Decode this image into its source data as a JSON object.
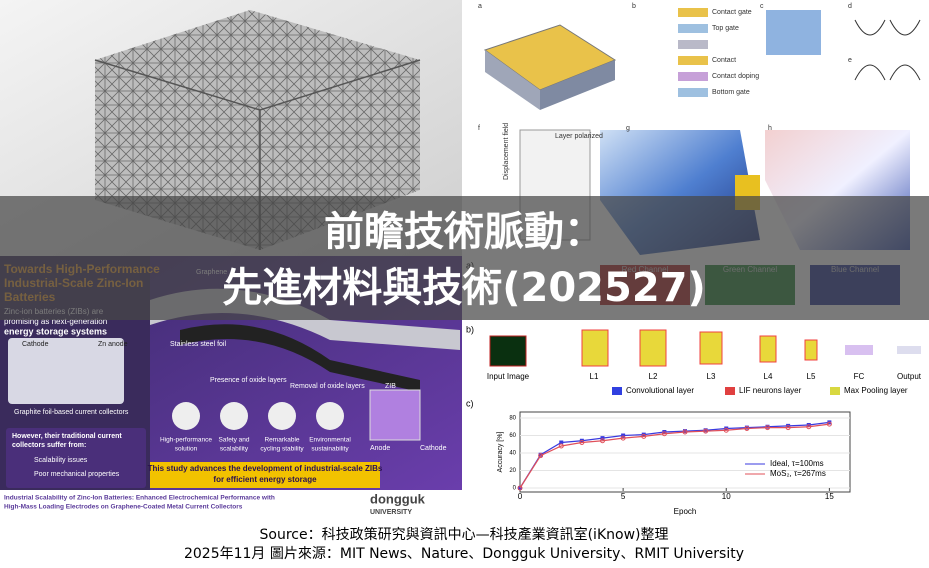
{
  "title": [
    "前瞻技術脈動：",
    "先進材料與技術(202527)"
  ],
  "source": [
    "Source：科技政策研究與資訊中心—科技產業資訊室(iKnow)整理",
    "2025年11月  圖片來源：MIT News、Nature、Dongguk University、RMIT University"
  ],
  "top_right": {
    "labels": [
      "a",
      "b",
      "c",
      "d",
      "e",
      "f",
      "g",
      "h",
      "Contact gate",
      "Top gate",
      "Contact",
      "Contact doping",
      "Bottom gate",
      "Layer polarized",
      "Displacement field"
    ]
  },
  "bottom_left": {
    "heading": [
      "Towards High-Performance",
      "Industrial-Scale Zinc-Ion",
      "Batteries"
    ],
    "intro": [
      "Zinc-ion batteries (ZIBs) are",
      "promising as next-generation",
      "energy storage systems"
    ],
    "labels": [
      "Cathode",
      "Zn anode",
      "Graphite foil-based current collectors",
      "Graphene",
      "Stainless steel foil",
      "Presence of oxide layers",
      "Removal of oxide layers",
      "ZIB",
      "Anode",
      "Cathode"
    ],
    "problem": [
      "However, their traditional current",
      "collectors suffer from:"
    ],
    "issues": [
      "Scalability issues",
      "Poor mechanical properties"
    ],
    "benefits": [
      [
        "High-performance",
        "solution"
      ],
      [
        "Safety and",
        "scalability"
      ],
      [
        "Remarkable",
        "cycling stability"
      ],
      [
        "Environmental",
        "sustainability"
      ]
    ],
    "conclusion": [
      "This study advances the development of industrial-scale ZIBs",
      "for efficient energy storage"
    ],
    "footer": [
      "Industrial Scalability of Zinc-Ion Batteries: Enhanced Electrochemical Performance with",
      "High-Mass Loading Electrodes on Graphene-Coated Metal Current Collectors"
    ],
    "logo": [
      "dongguk",
      "UNIVERSITY"
    ]
  },
  "bottom_right": {
    "panels": [
      "a)",
      "b)",
      "c)"
    ],
    "channels": [
      "Red Channel",
      "Green Channel",
      "Blue Channel"
    ],
    "layers": [
      "Input Image",
      "L1",
      "L2",
      "L3",
      "L4",
      "L5",
      "FC",
      "Output"
    ],
    "legend": [
      "Convolutional layer",
      "LIF neurons layer",
      "Max Pooling layer"
    ]
  },
  "chart_data": {
    "type": "line",
    "x_label": "Epoch",
    "y_label": "Accuracy [%]",
    "x": [
      0,
      1,
      2,
      3,
      4,
      5,
      6,
      7,
      8,
      9,
      10,
      11,
      12,
      13,
      14,
      15
    ],
    "series": [
      {
        "name": "Ideal, τ=100ms",
        "color": "#3a3adf",
        "values": [
          0,
          38,
          52,
          54,
          57,
          60,
          61,
          64,
          65,
          66,
          68,
          69,
          70,
          71,
          72,
          75
        ]
      },
      {
        "name": "MoS₂, τ=267ms",
        "color": "#e0505a",
        "values": [
          0,
          37,
          48,
          52,
          54,
          57,
          59,
          62,
          64,
          65,
          66,
          68,
          69,
          69,
          70,
          73
        ]
      }
    ],
    "xlim": [
      0,
      16
    ],
    "xticks": [
      0,
      5,
      10,
      15
    ],
    "ylim": [
      0,
      80
    ],
    "yticks": [
      0,
      20,
      40,
      60,
      80
    ],
    "legend": "lower right"
  }
}
